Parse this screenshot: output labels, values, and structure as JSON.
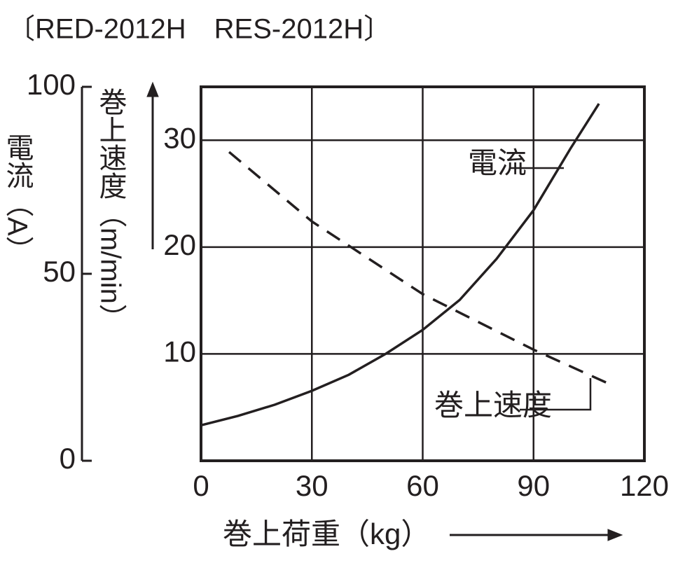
{
  "chart_data": {
    "type": "line",
    "title": "〔RED-2012H　RES-2012H〕",
    "xlabel": "巻上荷重（kg）",
    "ylabel": "電流（A）",
    "y2label": "巻上速度（m/min）",
    "xlim": [
      0,
      120
    ],
    "xticks": [
      0,
      30,
      60,
      90,
      120
    ],
    "ylim": [
      0,
      100
    ],
    "yticks": [
      0,
      50,
      100
    ],
    "y2lim": [
      0,
      35
    ],
    "y2ticks": [
      10,
      20,
      30
    ],
    "grid": true,
    "series": [
      {
        "name": "電流",
        "color": "#231f20",
        "style": "solid",
        "x": [
          0,
          10,
          20,
          30,
          40,
          50,
          60,
          70,
          80,
          90,
          100,
          107.7
        ],
        "values": [
          9.5,
          12,
          15,
          18.7,
          23,
          28.6,
          35,
          43,
          54,
          67,
          83.5,
          95.5
        ]
      },
      {
        "name": "巻上速度",
        "color": "#231f20",
        "style": "dashed",
        "axis": "y2",
        "x": [
          7.6,
          30,
          60,
          90,
          109.8
        ],
        "values": [
          28.9,
          22.4,
          15.6,
          10.4,
          7.3
        ]
      }
    ]
  }
}
